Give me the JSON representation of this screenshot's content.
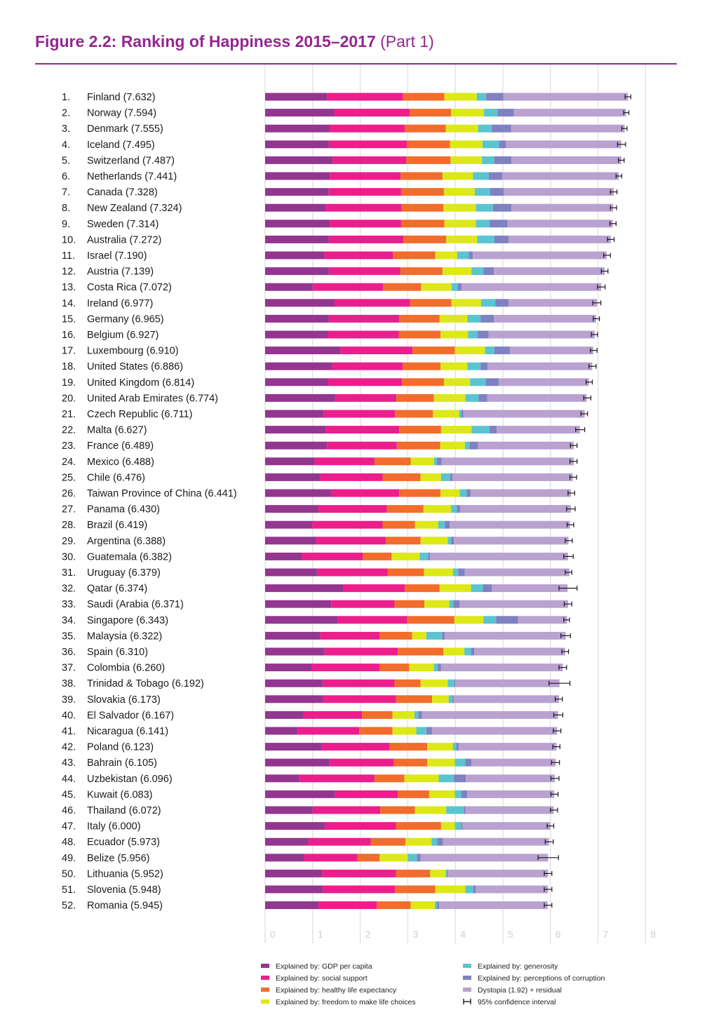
{
  "title": {
    "main": "Figure 2.2: Ranking of Happiness 2015–2017",
    "part": "(Part 1)"
  },
  "colors": {
    "gdp": "#93368f",
    "social": "#ec1e8c",
    "health": "#f26c2b",
    "freedom": "#dde818",
    "generosity": "#5cc4d0",
    "corruption": "#7f81c0",
    "dystopia": "#b9a1d0",
    "ci": "#1a1a1a",
    "grid": "#e3e3e3",
    "title": "#93278f"
  },
  "legend": [
    {
      "key": "gdp",
      "label": "Explained by: GDP per capita",
      "color": "#93368f"
    },
    {
      "key": "social",
      "label": "Explained by: social support",
      "color": "#ec1e8c"
    },
    {
      "key": "health",
      "label": "Explained by: healthy life expectancy",
      "color": "#f26c2b"
    },
    {
      "key": "freedom",
      "label": "Explained by: freedom to make life choices",
      "color": "#dde818"
    },
    {
      "key": "generosity",
      "label": "Explained by: generosity",
      "color": "#5cc4d0"
    },
    {
      "key": "corruption",
      "label": "Explained by: perceptions of corruption",
      "color": "#7f81c0"
    },
    {
      "key": "dystopia",
      "label": "Dystopia (1.92) + residual",
      "color": "#b9a1d0"
    },
    {
      "key": "ci",
      "label": "95% confidence interval",
      "color": "#1a1a1a"
    }
  ],
  "chart_data": {
    "type": "bar",
    "orientation": "horizontal",
    "stacked": true,
    "xlim": [
      0,
      8
    ],
    "x_ticks": [
      "0",
      "1",
      "2",
      "3",
      "4",
      "5",
      "6",
      "7",
      "8"
    ],
    "series_names": [
      "GDP per capita",
      "social support",
      "healthy life expectancy",
      "freedom to make life choices",
      "generosity",
      "perceptions of corruption",
      "Dystopia (1.92) + residual"
    ],
    "rows": [
      {
        "rank": "1.",
        "label": "Finland (7.632)",
        "score": 7.632,
        "segments": [
          1.31,
          1.59,
          0.87,
          0.68,
          0.2,
          0.36,
          2.62
        ],
        "ci": [
          7.57,
          7.69
        ]
      },
      {
        "rank": "2.",
        "label": "Norway (7.594)",
        "score": 7.594,
        "segments": [
          1.46,
          1.58,
          0.87,
          0.69,
          0.29,
          0.34,
          2.36
        ],
        "ci": [
          7.54,
          7.65
        ]
      },
      {
        "rank": "3.",
        "label": "Denmark (7.555)",
        "score": 7.555,
        "segments": [
          1.35,
          1.59,
          0.86,
          0.68,
          0.28,
          0.41,
          2.39
        ],
        "ci": [
          7.5,
          7.61
        ]
      },
      {
        "rank": "4.",
        "label": "Iceland (7.495)",
        "score": 7.495,
        "segments": [
          1.34,
          1.64,
          0.91,
          0.68,
          0.35,
          0.14,
          2.43
        ],
        "ci": [
          7.41,
          7.58
        ]
      },
      {
        "rank": "5.",
        "label": "Switzerland (7.487)",
        "score": 7.487,
        "segments": [
          1.42,
          1.55,
          0.93,
          0.66,
          0.26,
          0.36,
          2.31
        ],
        "ci": [
          7.43,
          7.55
        ]
      },
      {
        "rank": "6.",
        "label": "Netherlands (7.441)",
        "score": 7.441,
        "segments": [
          1.36,
          1.49,
          0.88,
          0.64,
          0.33,
          0.29,
          2.45
        ],
        "ci": [
          7.38,
          7.5
        ]
      },
      {
        "rank": "7.",
        "label": "Canada (7.328)",
        "score": 7.328,
        "segments": [
          1.33,
          1.53,
          0.9,
          0.65,
          0.32,
          0.29,
          2.31
        ],
        "ci": [
          7.26,
          7.4
        ]
      },
      {
        "rank": "8.",
        "label": "New Zealand (7.324)",
        "score": 7.324,
        "segments": [
          1.27,
          1.6,
          0.88,
          0.68,
          0.36,
          0.39,
          2.14
        ],
        "ci": [
          7.26,
          7.39
        ]
      },
      {
        "rank": "9.",
        "label": "Sweden (7.314)",
        "score": 7.314,
        "segments": [
          1.36,
          1.5,
          0.91,
          0.66,
          0.29,
          0.38,
          2.21
        ],
        "ci": [
          7.25,
          7.38
        ]
      },
      {
        "rank": "10.",
        "label": "Australia (7.272)",
        "score": 7.272,
        "segments": [
          1.34,
          1.57,
          0.9,
          0.65,
          0.36,
          0.3,
          2.15
        ],
        "ci": [
          7.2,
          7.34
        ]
      },
      {
        "rank": "11.",
        "label": "Israel (7.190)",
        "score": 7.19,
        "segments": [
          1.24,
          1.45,
          0.89,
          0.46,
          0.24,
          0.09,
          2.81
        ],
        "ci": [
          7.12,
          7.26
        ]
      },
      {
        "rank": "12.",
        "label": "Austria (7.139)",
        "score": 7.139,
        "segments": [
          1.34,
          1.5,
          0.89,
          0.61,
          0.25,
          0.22,
          2.33
        ],
        "ci": [
          7.07,
          7.21
        ]
      },
      {
        "rank": "13.",
        "label": "Costa Rica (7.072)",
        "score": 7.072,
        "segments": [
          1.0,
          1.48,
          0.8,
          0.64,
          0.13,
          0.08,
          2.94
        ],
        "ci": [
          6.99,
          7.15
        ]
      },
      {
        "rank": "14.",
        "label": "Ireland (6.977)",
        "score": 6.977,
        "segments": [
          1.46,
          1.59,
          0.87,
          0.62,
          0.3,
          0.28,
          1.86
        ],
        "ci": [
          6.89,
          7.06
        ]
      },
      {
        "rank": "15.",
        "label": "Germany (6.965)",
        "score": 6.965,
        "segments": [
          1.34,
          1.48,
          0.85,
          0.58,
          0.28,
          0.28,
          2.15
        ],
        "ci": [
          6.9,
          7.03
        ]
      },
      {
        "rank": "16.",
        "label": "Belgium (6.927)",
        "score": 6.927,
        "segments": [
          1.32,
          1.49,
          0.88,
          0.58,
          0.2,
          0.23,
          2.23
        ],
        "ci": [
          6.86,
          6.99
        ]
      },
      {
        "rank": "17.",
        "label": "Luxembourg (6.910)",
        "score": 6.91,
        "segments": [
          1.58,
          1.52,
          0.89,
          0.63,
          0.2,
          0.33,
          1.75
        ],
        "ci": [
          6.84,
          6.98
        ]
      },
      {
        "rank": "18.",
        "label": "United States (6.886)",
        "score": 6.886,
        "segments": [
          1.41,
          1.48,
          0.8,
          0.56,
          0.28,
          0.15,
          2.2
        ],
        "ci": [
          6.81,
          6.96
        ]
      },
      {
        "rank": "19.",
        "label": "United Kingdom (6.814)",
        "score": 6.814,
        "segments": [
          1.32,
          1.56,
          0.88,
          0.55,
          0.33,
          0.27,
          1.9
        ],
        "ci": [
          6.75,
          6.88
        ]
      },
      {
        "rank": "20.",
        "label": "United Arab Emirates (6.774)",
        "score": 6.774,
        "segments": [
          1.48,
          1.28,
          0.79,
          0.66,
          0.28,
          0.18,
          2.09
        ],
        "ci": [
          6.7,
          6.85
        ]
      },
      {
        "rank": "21.",
        "label": "Czech Republic (6.711)",
        "score": 6.711,
        "segments": [
          1.23,
          1.5,
          0.8,
          0.55,
          0.05,
          0.04,
          2.55
        ],
        "ci": [
          6.64,
          6.78
        ]
      },
      {
        "rank": "22.",
        "label": "Malta (6.627)",
        "score": 6.627,
        "segments": [
          1.27,
          1.55,
          0.88,
          0.64,
          0.38,
          0.15,
          1.75
        ],
        "ci": [
          6.53,
          6.72
        ]
      },
      {
        "rank": "23.",
        "label": "France (6.489)",
        "score": 6.489,
        "segments": [
          1.3,
          1.47,
          0.91,
          0.52,
          0.1,
          0.18,
          2.01
        ],
        "ci": [
          6.42,
          6.56
        ]
      },
      {
        "rank": "24.",
        "label": "Mexico (6.488)",
        "score": 6.488,
        "segments": [
          1.04,
          1.26,
          0.76,
          0.49,
          0.06,
          0.1,
          2.78
        ],
        "ci": [
          6.41,
          6.56
        ]
      },
      {
        "rank": "25.",
        "label": "Chile (6.476)",
        "score": 6.476,
        "segments": [
          1.16,
          1.31,
          0.8,
          0.43,
          0.19,
          0.05,
          2.53
        ],
        "ci": [
          6.41,
          6.55
        ]
      },
      {
        "rank": "26.",
        "label": "Taiwan Province of China (6.441)",
        "score": 6.441,
        "segments": [
          1.38,
          1.44,
          0.87,
          0.4,
          0.15,
          0.08,
          2.11
        ],
        "ci": [
          6.37,
          6.51
        ]
      },
      {
        "rank": "27.",
        "label": "Panama (6.430)",
        "score": 6.43,
        "segments": [
          1.12,
          1.44,
          0.77,
          0.58,
          0.12,
          0.07,
          2.33
        ],
        "ci": [
          6.34,
          6.52
        ]
      },
      {
        "rank": "28.",
        "label": "Brazil (6.419)",
        "score": 6.419,
        "segments": [
          0.99,
          1.48,
          0.68,
          0.49,
          0.14,
          0.1,
          2.53
        ],
        "ci": [
          6.35,
          6.49
        ]
      },
      {
        "rank": "29.",
        "label": "Argentina (6.388)",
        "score": 6.388,
        "segments": [
          1.07,
          1.47,
          0.73,
          0.57,
          0.07,
          0.06,
          2.41
        ],
        "ci": [
          6.31,
          6.46
        ]
      },
      {
        "rank": "30.",
        "label": "Guatemala (6.382)",
        "score": 6.382,
        "segments": [
          0.78,
          1.27,
          0.61,
          0.59,
          0.18,
          0.04,
          2.9
        ],
        "ci": [
          6.28,
          6.48
        ]
      },
      {
        "rank": "31.",
        "label": "Uruguay (6.379)",
        "score": 6.379,
        "segments": [
          1.09,
          1.49,
          0.76,
          0.61,
          0.11,
          0.14,
          2.2
        ],
        "ci": [
          6.31,
          6.45
        ]
      },
      {
        "rank": "32.",
        "label": "Qatar (6.374)",
        "score": 6.374,
        "segments": [
          1.65,
          1.29,
          0.73,
          0.66,
          0.25,
          0.19,
          1.59
        ],
        "ci": [
          6.18,
          6.56
        ]
      },
      {
        "rank": "33.",
        "label": "Saudi (Arabia (6.371)",
        "score": 6.371,
        "segments": [
          1.39,
          1.33,
          0.63,
          0.52,
          0.09,
          0.13,
          2.28
        ],
        "ci": [
          6.29,
          6.45
        ]
      },
      {
        "rank": "34.",
        "label": "Singapore (6.343)",
        "score": 6.343,
        "segments": [
          1.53,
          1.46,
          0.99,
          0.61,
          0.27,
          0.46,
          1.03
        ],
        "ci": [
          6.28,
          6.4
        ]
      },
      {
        "rank": "35.",
        "label": "Malaysia (6.322)",
        "score": 6.322,
        "segments": [
          1.16,
          1.25,
          0.68,
          0.3,
          0.33,
          0.06,
          2.54
        ],
        "ci": [
          6.22,
          6.42
        ]
      },
      {
        "rank": "36.",
        "label": "Spain (6.310)",
        "score": 6.31,
        "segments": [
          1.25,
          1.54,
          0.96,
          0.44,
          0.14,
          0.07,
          1.91
        ],
        "ci": [
          6.24,
          6.38
        ]
      },
      {
        "rank": "37.",
        "label": "Colombia (6.260)",
        "score": 6.26,
        "segments": [
          0.98,
          1.43,
          0.62,
          0.52,
          0.08,
          0.07,
          2.56
        ],
        "ci": [
          6.18,
          6.34
        ]
      },
      {
        "rank": "38.",
        "label": "Trinidad & Tobago (6.192)",
        "score": 6.192,
        "segments": [
          1.22,
          1.5,
          0.55,
          0.57,
          0.14,
          0.02,
          2.19
        ],
        "ci": [
          5.97,
          6.41
        ]
      },
      {
        "rank": "39.",
        "label": "Slovakia (6.173)",
        "score": 6.173,
        "segments": [
          1.21,
          1.54,
          0.76,
          0.35,
          0.08,
          0.03,
          2.21
        ],
        "ci": [
          6.1,
          6.25
        ]
      },
      {
        "rank": "40.",
        "label": "El Salvador (6.167)",
        "score": 6.167,
        "segments": [
          0.81,
          1.23,
          0.64,
          0.46,
          0.08,
          0.08,
          2.86
        ],
        "ci": [
          6.07,
          6.26
        ]
      },
      {
        "rank": "41.",
        "label": "Nicaragua (6.141)",
        "score": 6.141,
        "segments": [
          0.68,
          1.3,
          0.7,
          0.5,
          0.21,
          0.12,
          2.63
        ],
        "ci": [
          6.06,
          6.22
        ]
      },
      {
        "rank": "42.",
        "label": "Poland (6.123)",
        "score": 6.123,
        "segments": [
          1.18,
          1.44,
          0.79,
          0.54,
          0.07,
          0.05,
          2.06
        ],
        "ci": [
          6.05,
          6.2
        ]
      },
      {
        "rank": "43.",
        "label": "Bahrain (6.105)",
        "score": 6.105,
        "segments": [
          1.36,
          1.35,
          0.7,
          0.58,
          0.22,
          0.13,
          1.77
        ],
        "ci": [
          6.02,
          6.19
        ]
      },
      {
        "rank": "44.",
        "label": "Uzbekistan (6.096)",
        "score": 6.096,
        "segments": [
          0.72,
          1.58,
          0.63,
          0.72,
          0.32,
          0.25,
          1.87
        ],
        "ci": [
          6.01,
          6.18
        ]
      },
      {
        "rank": "45.",
        "label": "Kuwait (6.083)",
        "score": 6.083,
        "segments": [
          1.47,
          1.32,
          0.66,
          0.54,
          0.14,
          0.12,
          1.83
        ],
        "ci": [
          6.01,
          6.16
        ]
      },
      {
        "rank": "46.",
        "label": "Thailand (6.072)",
        "score": 6.072,
        "segments": [
          1.0,
          1.42,
          0.73,
          0.66,
          0.37,
          0.03,
          1.86
        ],
        "ci": [
          6.0,
          6.15
        ]
      },
      {
        "rank": "47.",
        "label": "Italy (6.000)",
        "score": 6.0,
        "segments": [
          1.26,
          1.49,
          0.95,
          0.29,
          0.13,
          0.03,
          1.85
        ],
        "ci": [
          5.93,
          6.07
        ]
      },
      {
        "rank": "48.",
        "label": "Ecuador (5.973)",
        "score": 5.973,
        "segments": [
          0.9,
          1.32,
          0.73,
          0.55,
          0.12,
          0.12,
          2.23
        ],
        "ci": [
          5.89,
          6.06
        ]
      },
      {
        "rank": "49.",
        "label": "Belize (5.956)",
        "score": 5.956,
        "segments": [
          0.82,
          1.12,
          0.47,
          0.59,
          0.19,
          0.08,
          2.68
        ],
        "ci": [
          5.74,
          6.17
        ]
      },
      {
        "rank": "50.",
        "label": "Lithuania (5.952)",
        "score": 5.952,
        "segments": [
          1.2,
          1.55,
          0.72,
          0.33,
          0.02,
          0.02,
          2.11
        ],
        "ci": [
          5.87,
          6.03
        ]
      },
      {
        "rank": "51.",
        "label": "Slovenia (5.948)",
        "score": 5.948,
        "segments": [
          1.22,
          1.51,
          0.85,
          0.63,
          0.17,
          0.05,
          1.52
        ],
        "ci": [
          5.87,
          6.03
        ]
      },
      {
        "rank": "52.",
        "label": "Romania (5.945)",
        "score": 5.945,
        "segments": [
          1.12,
          1.23,
          0.71,
          0.51,
          0.05,
          0.04,
          2.28
        ],
        "ci": [
          5.87,
          6.03
        ]
      }
    ]
  }
}
